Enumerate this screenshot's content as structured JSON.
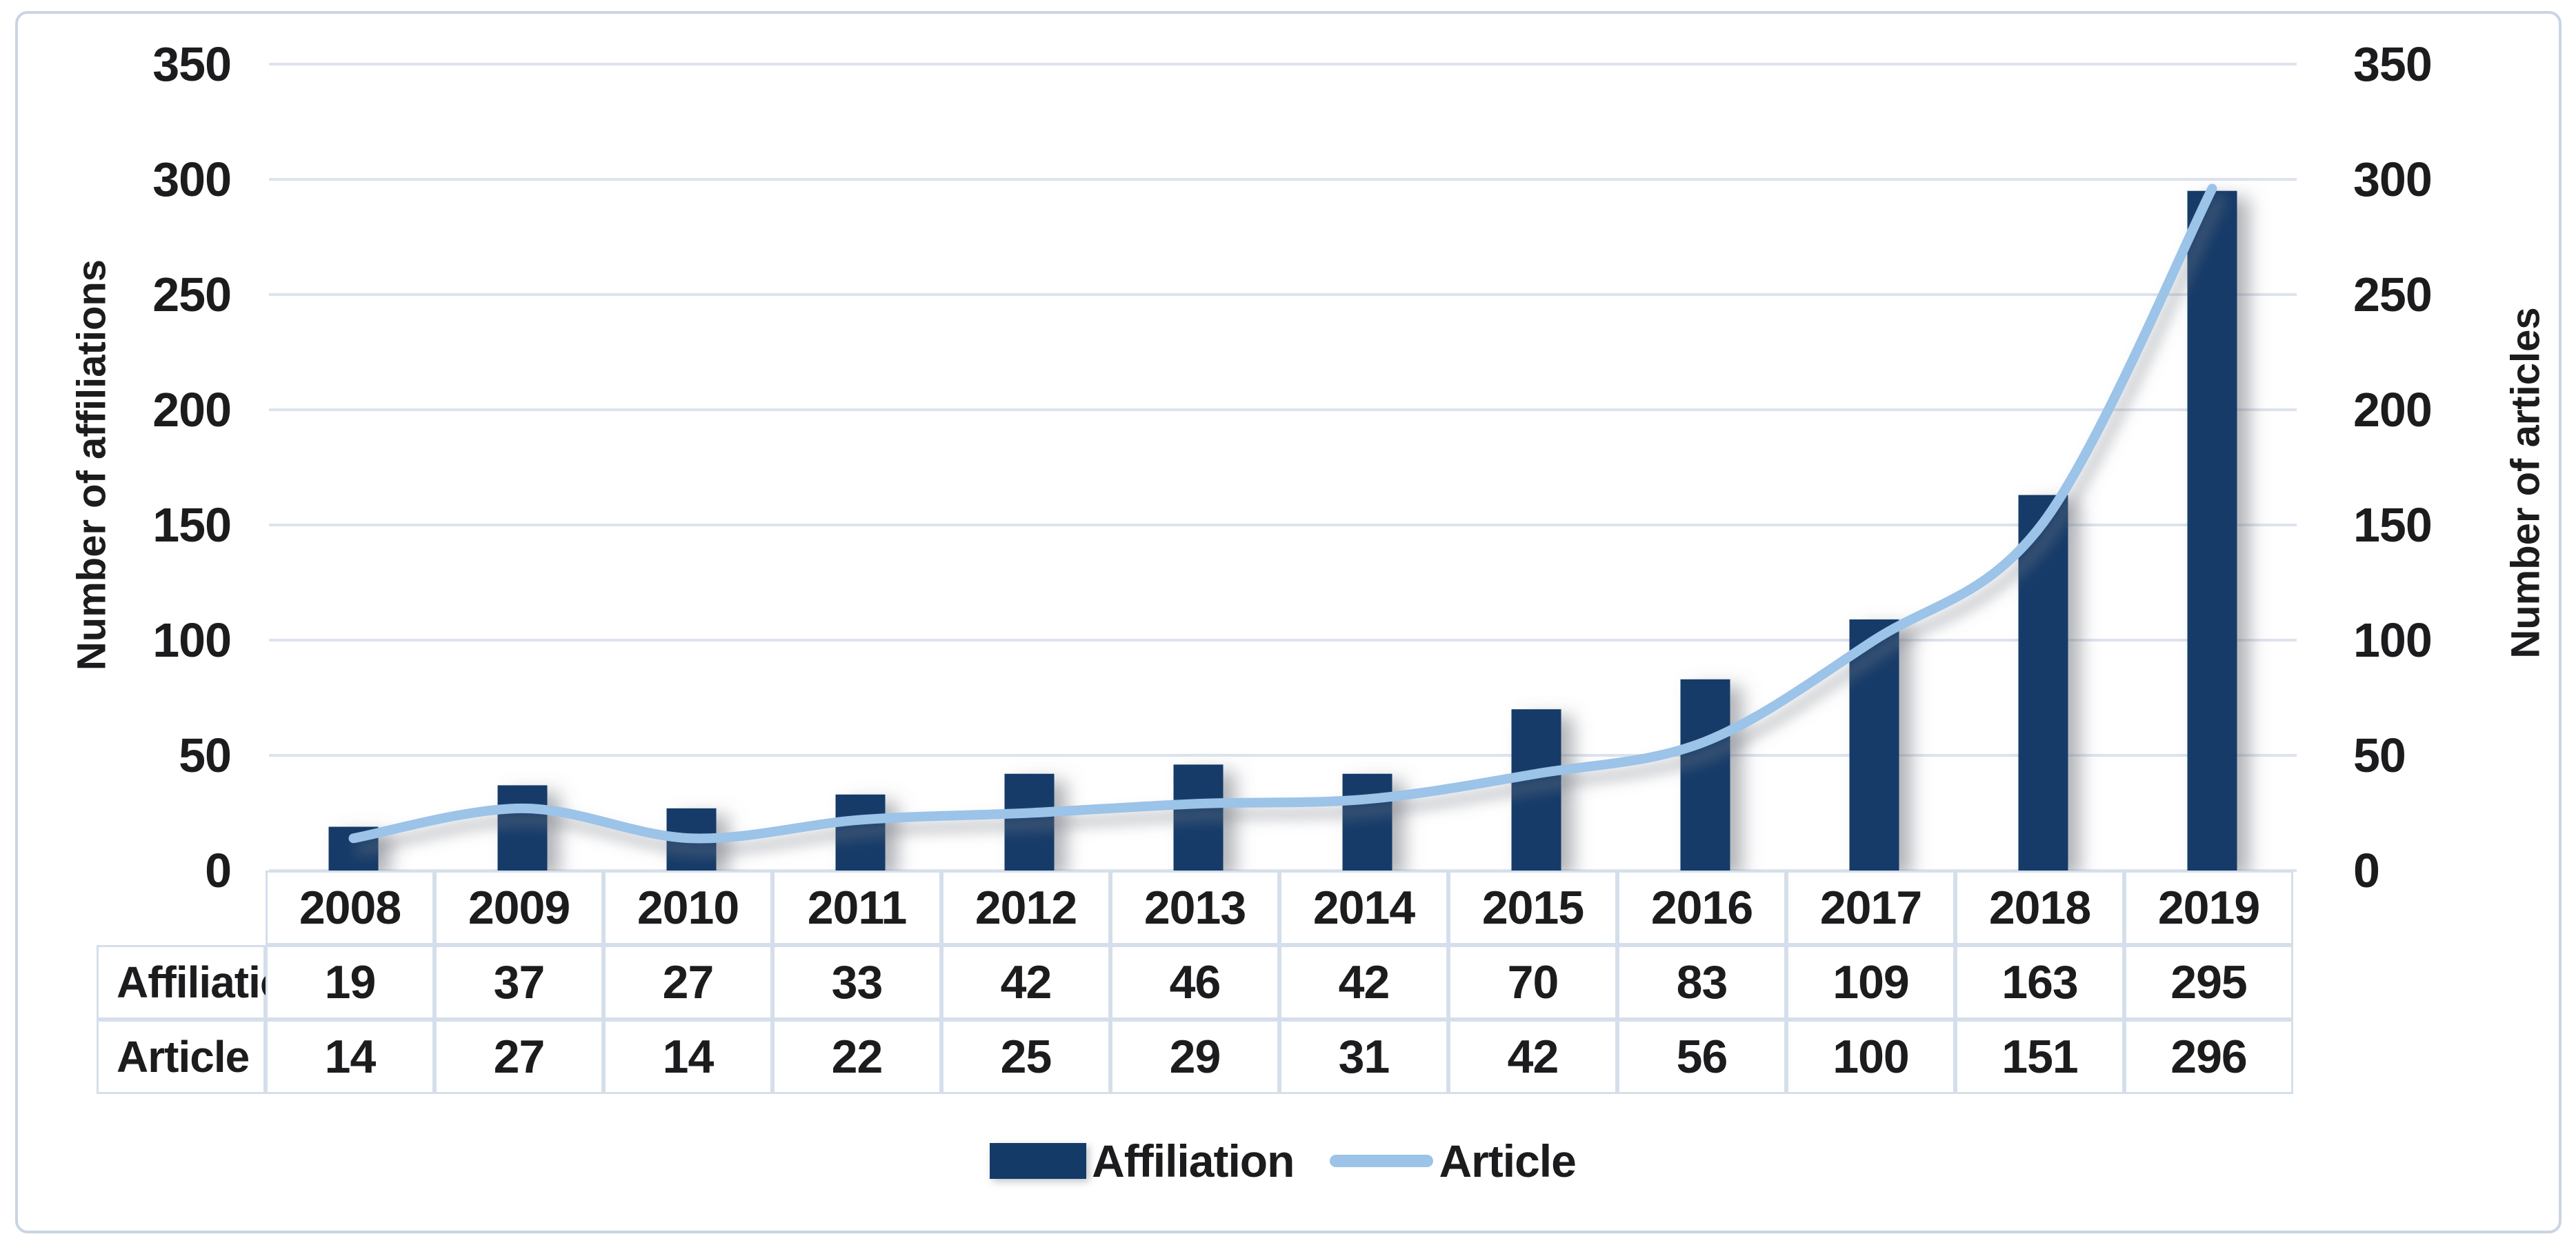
{
  "chart_data": {
    "type": "combo-bar-line",
    "categories": [
      "2008",
      "2009",
      "2010",
      "2011",
      "2012",
      "2013",
      "2014",
      "2015",
      "2016",
      "2017",
      "2018",
      "2019"
    ],
    "series": [
      {
        "name": "Affiliation",
        "chart_type": "bar",
        "color": "#143a68",
        "axis": "left",
        "values": [
          19,
          37,
          27,
          33,
          42,
          46,
          42,
          70,
          83,
          109,
          163,
          295
        ]
      },
      {
        "name": "Article",
        "chart_type": "line",
        "color": "#9cc3e8",
        "axis": "right",
        "values": [
          14,
          27,
          14,
          22,
          25,
          29,
          31,
          42,
          56,
          100,
          151,
          296
        ]
      }
    ],
    "left_axis": {
      "title": "Number of affiliations",
      "min": 0,
      "max": 350,
      "step": 50
    },
    "right_axis": {
      "title": "Number of articles",
      "min": 0,
      "max": 350,
      "step": 50
    },
    "tick_labels": [
      "0",
      "50",
      "100",
      "150",
      "200",
      "250",
      "300",
      "350"
    ],
    "gridlines": "horizontal",
    "legend_position": "bottom",
    "data_table_shown": true,
    "line_smoothed": true
  },
  "legend": {
    "items": [
      {
        "label": "Affiliation",
        "swatch": "bar-swatch",
        "color": "#143a68"
      },
      {
        "label": "Article",
        "swatch": "line-swatch",
        "color": "#9cc3e8"
      }
    ]
  },
  "colors": {
    "bar": "#143a68",
    "line": "#9cc3e8",
    "gridline": "#dde3ee",
    "table_border": "#d5dfeb",
    "frame_border": "#c9d5e4",
    "text": "#1c1c1e",
    "background": "#ffffff"
  }
}
